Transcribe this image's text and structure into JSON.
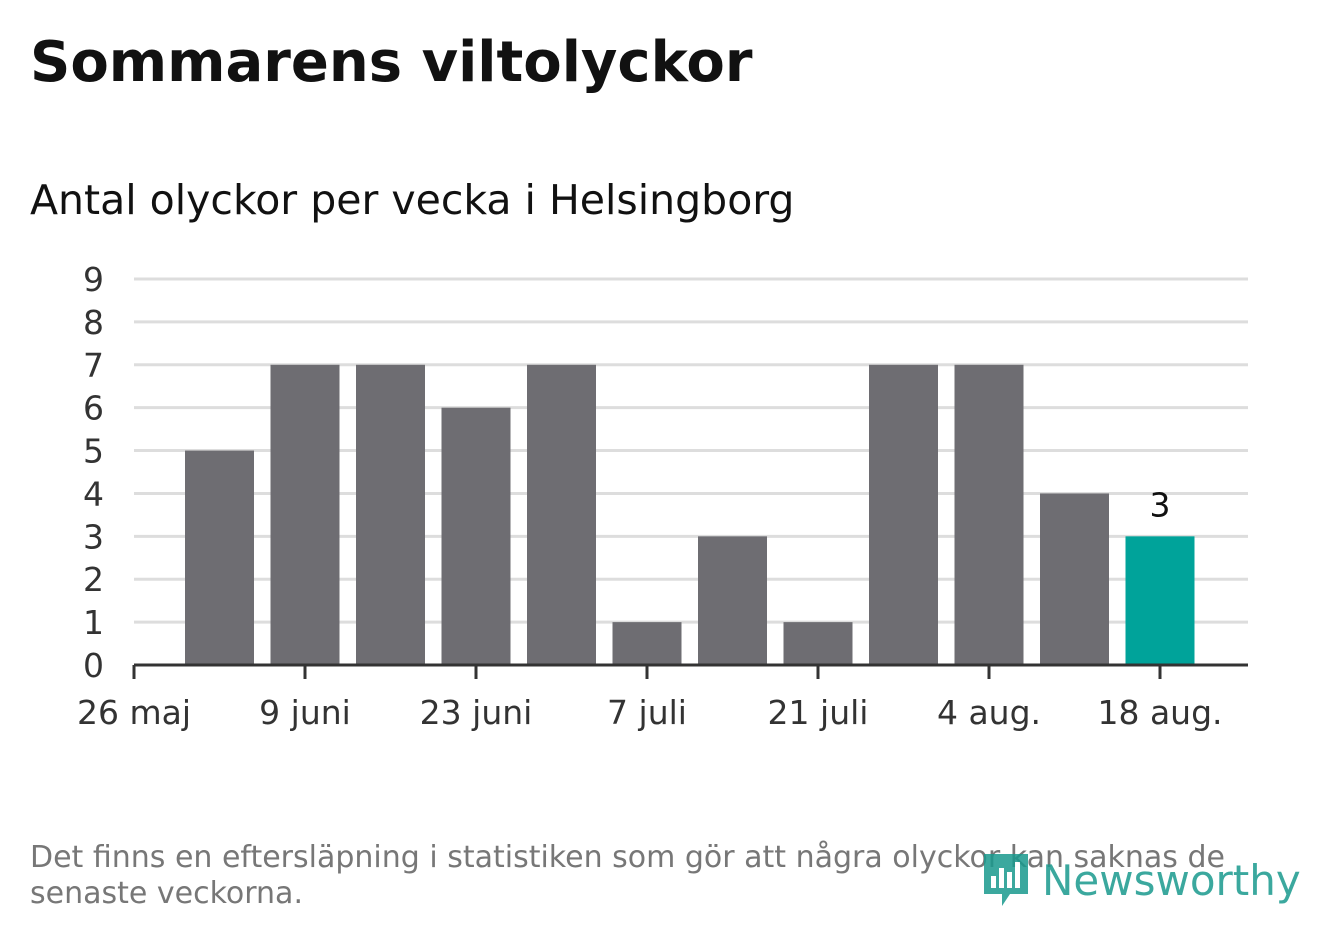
{
  "header": {
    "title": "Sommarens viltolyckor"
  },
  "chart_data": {
    "type": "bar",
    "title": "Sommarens viltolyckor",
    "subtitle": "Antal olyckor per vecka i Helsingborg",
    "xlabel": "",
    "ylabel": "",
    "x_tick_labels": [
      "26 maj",
      "9 juni",
      "23 juni",
      "7 juli",
      "21 juli",
      "4 aug.",
      "18 aug."
    ],
    "y_ticks": [
      0,
      1,
      2,
      3,
      4,
      5,
      6,
      7,
      8,
      9
    ],
    "ylim": [
      0,
      9
    ],
    "grid": true,
    "legend": "none",
    "values": [
      5,
      7,
      7,
      6,
      7,
      1,
      3,
      1,
      7,
      7,
      4,
      3
    ],
    "highlight_index": 11,
    "highlight_label": "3",
    "colors": {
      "bar": "#6e6d72",
      "highlight": "#00a39a",
      "grid": "#dddddd",
      "axis": "#333333"
    }
  },
  "footer": {
    "note": "Det finns en eftersläpning i statistiken som gör att några olyckor kan saknas de senaste veckorna.",
    "logo_text": "Newsworthy",
    "logo_icon": "bar-chart-badge-icon"
  }
}
